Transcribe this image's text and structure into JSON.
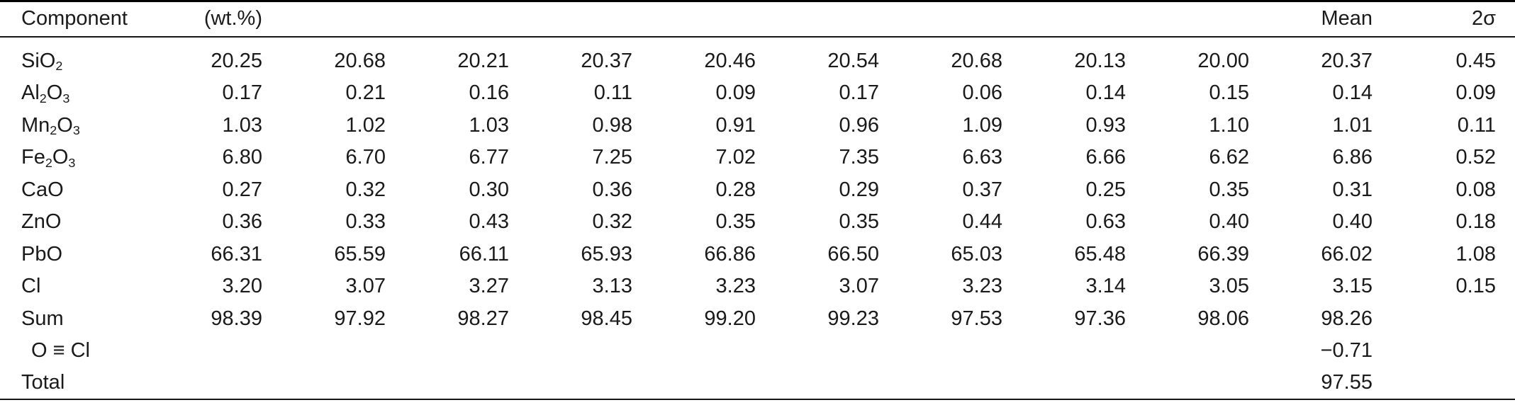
{
  "header": {
    "component": "Component",
    "unit": "(wt.%)",
    "mean": "Mean",
    "sigma": "2σ"
  },
  "table": {
    "rows": [
      {
        "label": [
          [
            "SiO",
            0
          ],
          [
            "2",
            1
          ]
        ],
        "indent": false,
        "values": [
          "20.25",
          "20.68",
          "20.21",
          "20.37",
          "20.46",
          "20.54",
          "20.68",
          "20.13",
          "20.00"
        ],
        "mean": "20.37",
        "sigma": "0.45"
      },
      {
        "label": [
          [
            "Al",
            0
          ],
          [
            "2",
            1
          ],
          [
            "O",
            0
          ],
          [
            "3",
            1
          ]
        ],
        "indent": false,
        "values": [
          "0.17",
          "0.21",
          "0.16",
          "0.11",
          "0.09",
          "0.17",
          "0.06",
          "0.14",
          "0.15"
        ],
        "mean": "0.14",
        "sigma": "0.09"
      },
      {
        "label": [
          [
            "Mn",
            0
          ],
          [
            "2",
            1
          ],
          [
            "O",
            0
          ],
          [
            "3",
            1
          ]
        ],
        "indent": false,
        "values": [
          "1.03",
          "1.02",
          "1.03",
          "0.98",
          "0.91",
          "0.96",
          "1.09",
          "0.93",
          "1.10"
        ],
        "mean": "1.01",
        "sigma": "0.11"
      },
      {
        "label": [
          [
            "Fe",
            0
          ],
          [
            "2",
            1
          ],
          [
            "O",
            0
          ],
          [
            "3",
            1
          ]
        ],
        "indent": false,
        "values": [
          "6.80",
          "6.70",
          "6.77",
          "7.25",
          "7.02",
          "7.35",
          "6.63",
          "6.66",
          "6.62"
        ],
        "mean": "6.86",
        "sigma": "0.52"
      },
      {
        "label": [
          [
            "CaO",
            0
          ]
        ],
        "indent": false,
        "values": [
          "0.27",
          "0.32",
          "0.30",
          "0.36",
          "0.28",
          "0.29",
          "0.37",
          "0.25",
          "0.35"
        ],
        "mean": "0.31",
        "sigma": "0.08"
      },
      {
        "label": [
          [
            "ZnO",
            0
          ]
        ],
        "indent": false,
        "values": [
          "0.36",
          "0.33",
          "0.43",
          "0.32",
          "0.35",
          "0.35",
          "0.44",
          "0.63",
          "0.40"
        ],
        "mean": "0.40",
        "sigma": "0.18"
      },
      {
        "label": [
          [
            "PbO",
            0
          ]
        ],
        "indent": false,
        "values": [
          "66.31",
          "65.59",
          "66.11",
          "65.93",
          "66.86",
          "66.50",
          "65.03",
          "65.48",
          "66.39"
        ],
        "mean": "66.02",
        "sigma": "1.08"
      },
      {
        "label": [
          [
            "Cl",
            0
          ]
        ],
        "indent": false,
        "values": [
          "3.20",
          "3.07",
          "3.27",
          "3.13",
          "3.23",
          "3.07",
          "3.23",
          "3.14",
          "3.05"
        ],
        "mean": "3.15",
        "sigma": "0.15"
      },
      {
        "label": [
          [
            "Sum",
            0
          ]
        ],
        "indent": false,
        "values": [
          "98.39",
          "97.92",
          "98.27",
          "98.45",
          "99.20",
          "99.23",
          "97.53",
          "97.36",
          "98.06"
        ],
        "mean": "98.26",
        "sigma": ""
      },
      {
        "label": [
          [
            "O ≡ Cl",
            0
          ]
        ],
        "indent": true,
        "values": [
          "",
          "",
          "",
          "",
          "",
          "",
          "",
          "",
          ""
        ],
        "mean": "−0.71",
        "sigma": ""
      },
      {
        "label": [
          [
            "Total",
            0
          ]
        ],
        "indent": false,
        "values": [
          "",
          "",
          "",
          "",
          "",
          "",
          "",
          "",
          ""
        ],
        "mean": "97.55",
        "sigma": ""
      }
    ]
  }
}
